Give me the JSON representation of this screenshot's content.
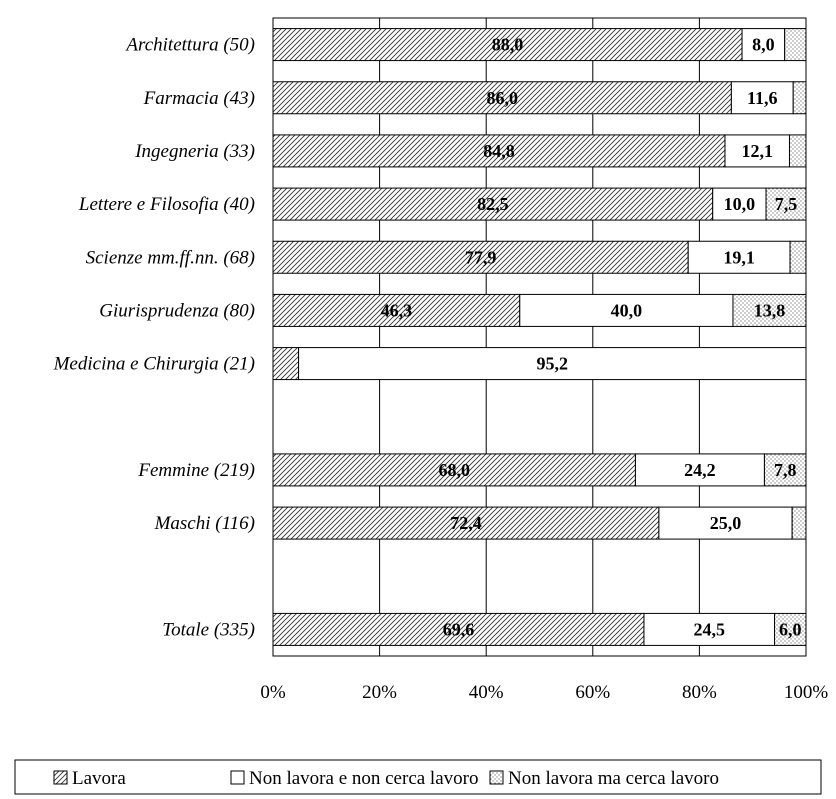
{
  "chart_data": {
    "type": "bar",
    "orientation": "horizontal",
    "stacked": true,
    "percent_stacked": true,
    "rows": [
      {
        "label": "Architettura (50)",
        "values": [
          88.0,
          8.0,
          4.0
        ],
        "labels": [
          "88,0",
          "8,0",
          ""
        ]
      },
      {
        "label": "Farmacia (43)",
        "values": [
          86.0,
          11.6,
          2.3
        ],
        "labels": [
          "86,0",
          "11,6",
          ""
        ]
      },
      {
        "label": "Ingegneria (33)",
        "values": [
          84.8,
          12.1,
          3.0
        ],
        "labels": [
          "84,8",
          "12,1",
          ""
        ]
      },
      {
        "label": "Lettere e Filosofia (40)",
        "values": [
          82.5,
          10.0,
          7.5
        ],
        "labels": [
          "82,5",
          "10,0",
          "7,5"
        ]
      },
      {
        "label": "Scienze mm.ff.nn. (68)",
        "values": [
          77.9,
          19.1,
          2.9
        ],
        "labels": [
          "77,9",
          "19,1",
          ""
        ]
      },
      {
        "label": "Giurisprudenza (80)",
        "values": [
          46.3,
          40.0,
          13.8
        ],
        "labels": [
          "46,3",
          "40,0",
          "13,8"
        ]
      },
      {
        "label": "Medicina e Chirurgia (21)",
        "values": [
          4.8,
          95.2,
          0.0
        ],
        "labels": [
          "",
          "95,2",
          ""
        ]
      },
      {
        "label": "",
        "values": [
          0,
          0,
          0
        ],
        "labels": [
          "",
          "",
          ""
        ],
        "spacer": true
      },
      {
        "label": "Femmine (219)",
        "values": [
          68.0,
          24.2,
          7.8
        ],
        "labels": [
          "68,0",
          "24,2",
          "7,8"
        ]
      },
      {
        "label": "Maschi (116)",
        "values": [
          72.4,
          25.0,
          2.6
        ],
        "labels": [
          "72,4",
          "25,0",
          ""
        ]
      },
      {
        "label": "",
        "values": [
          0,
          0,
          0
        ],
        "labels": [
          "",
          "",
          ""
        ],
        "spacer": true
      },
      {
        "label": "Totale (335)",
        "values": [
          69.6,
          24.5,
          6.0
        ],
        "labels": [
          "69,6",
          "24,5",
          "6,0"
        ]
      }
    ],
    "series": [
      {
        "name": "Lavora",
        "pattern": "diagonal-hatch"
      },
      {
        "name": "Non lavora e non cerca lavoro",
        "pattern": "none"
      },
      {
        "name": "Non lavora ma cerca lavoro",
        "pattern": "dots"
      }
    ],
    "x_ticks": [
      "0%",
      "20%",
      "40%",
      "60%",
      "80%",
      "100%"
    ],
    "xlim": [
      0,
      100
    ],
    "grid": "vertical",
    "legend_position": "bottom",
    "title": "",
    "xlabel": "",
    "ylabel": "",
    "colors": {
      "stroke": "#000000",
      "fill": "#ffffff",
      "hatch": "#333333"
    }
  }
}
